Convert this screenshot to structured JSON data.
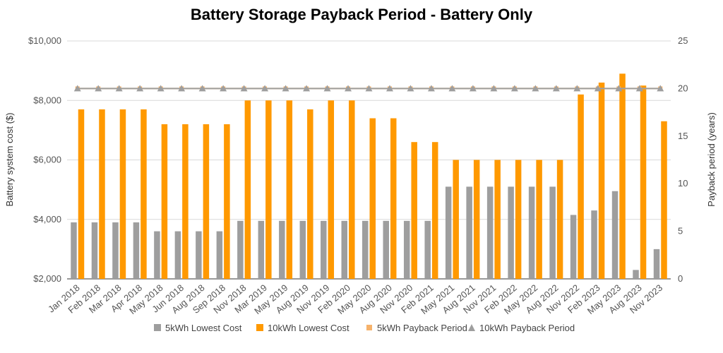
{
  "chart_data": {
    "type": "bar",
    "title": "Battery Storage Payback Period - Battery Only",
    "ylabel": "Battery system cost ($)",
    "y2label": "Payback period (years)",
    "ylim": [
      2000,
      10000
    ],
    "y2lim": [
      0,
      25
    ],
    "yticks": [
      "$2,000",
      "$4,000",
      "$6,000",
      "$8,000",
      "$10,000"
    ],
    "y2ticks": [
      "0",
      "5",
      "10",
      "15",
      "20",
      "25"
    ],
    "grid": true,
    "legend_position": "bottom",
    "categories": [
      "Jan 2018",
      "Feb 2018",
      "Mar 2018",
      "Apr 2018",
      "May 2018",
      "Jun 2018",
      "Aug 2018",
      "Sep 2018",
      "Nov 2018",
      "Mar 2019",
      "May 2019",
      "Aug 2019",
      "Nov 2019",
      "Feb 2020",
      "May 2020",
      "Aug 2020",
      "Nov 2020",
      "Feb 2021",
      "May 2021",
      "Aug 2021",
      "Nov 2021",
      "Feb 2022",
      "May 2022",
      "Aug 2022",
      "Nov 2022",
      "Feb 2023",
      "May 2023",
      "Aug 2023",
      "Nov 2023"
    ],
    "series": [
      {
        "name": "5kWh Lowest Cost",
        "kind": "bar",
        "axis": "left",
        "color": "#9e9e9e",
        "values": [
          3900,
          3900,
          3900,
          3900,
          3600,
          3600,
          3600,
          3600,
          3950,
          3950,
          3950,
          3950,
          3950,
          3950,
          3950,
          3950,
          3950,
          3950,
          5100,
          5100,
          5100,
          5100,
          5100,
          5100,
          4150,
          4300,
          4950,
          2300,
          3000
        ]
      },
      {
        "name": "10kWh Lowest Cost",
        "kind": "bar",
        "axis": "left",
        "color": "#ff9900",
        "values": [
          7700,
          7700,
          7700,
          7700,
          7200,
          7200,
          7200,
          7200,
          8000,
          8000,
          8000,
          7700,
          8000,
          8000,
          7400,
          7400,
          6600,
          6600,
          6000,
          6000,
          6000,
          6000,
          6000,
          6000,
          8200,
          8600,
          8900,
          8500,
          7300
        ]
      },
      {
        "name": "5kWh Payback Period",
        "kind": "line",
        "marker": "square",
        "axis": "right",
        "color": "#f6b26b",
        "values": [
          20,
          20,
          20,
          20,
          20,
          20,
          20,
          20,
          20,
          20,
          20,
          20,
          20,
          20,
          20,
          20,
          20,
          20,
          20,
          20,
          20,
          20,
          20,
          20,
          20,
          20,
          20,
          20,
          20
        ]
      },
      {
        "name": "10kWh Payback Period",
        "kind": "line",
        "marker": "triangle",
        "axis": "right",
        "color": "#9e9e9e",
        "values": [
          20,
          20,
          20,
          20,
          20,
          20,
          20,
          20,
          20,
          20,
          20,
          20,
          20,
          20,
          20,
          20,
          20,
          20,
          20,
          20,
          20,
          20,
          20,
          20,
          20,
          20,
          20,
          20,
          20
        ]
      }
    ]
  }
}
